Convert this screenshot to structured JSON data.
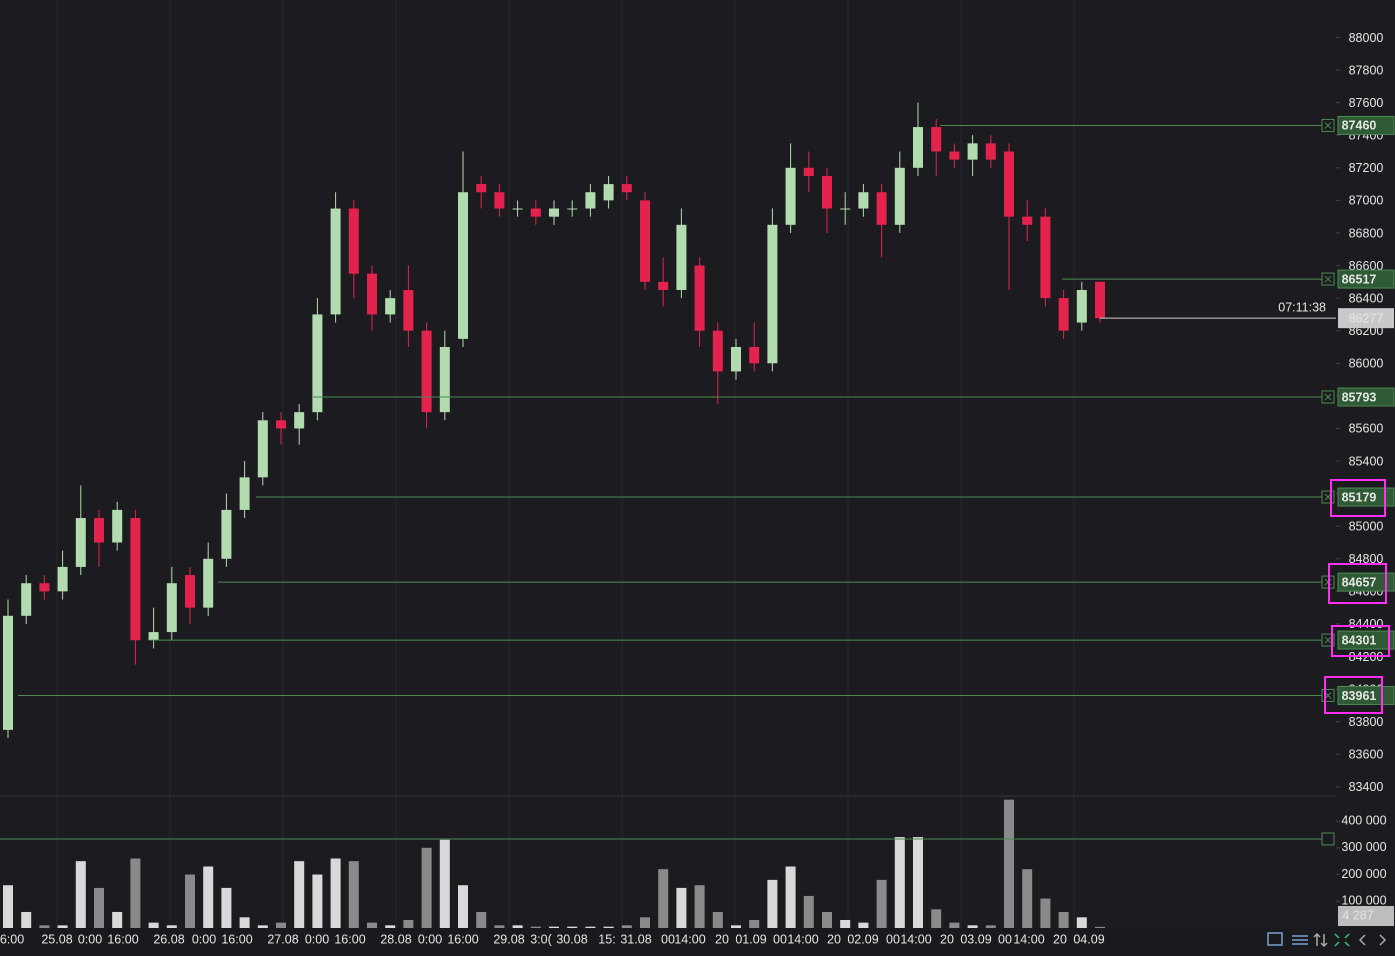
{
  "chart_data": {
    "type": "candlestick",
    "open": [
      83750,
      84450,
      84650,
      84600,
      84750,
      85050,
      84900,
      85050,
      84300,
      84350,
      84700,
      84500,
      84800,
      85100,
      85300,
      85650,
      85600,
      85700,
      86300,
      86950,
      86550,
      86300,
      86450,
      86200,
      85700,
      86150,
      87100,
      87050,
      86950,
      86950,
      86900,
      86950,
      86950,
      87000,
      87100,
      87000,
      86500,
      86450,
      86600,
      86200,
      85950,
      86100,
      86000,
      86850,
      87200,
      87150,
      86950,
      86950,
      87050,
      86850,
      87200,
      87450,
      87300,
      87250,
      87350,
      87300,
      86900,
      86900,
      86400,
      86250,
      86500
    ],
    "high": [
      84550,
      84700,
      84700,
      84850,
      85250,
      85100,
      85150,
      85100,
      84500,
      84750,
      84750,
      84900,
      85200,
      85400,
      85700,
      85700,
      85750,
      86400,
      87050,
      87000,
      86600,
      86450,
      86600,
      86250,
      86200,
      87300,
      87150,
      87100,
      87000,
      87000,
      87000,
      87000,
      87100,
      87150,
      87150,
      87050,
      86650,
      86950,
      86650,
      86250,
      86150,
      86250,
      86950,
      87350,
      87300,
      87200,
      87050,
      87100,
      87100,
      87300,
      87600,
      87500,
      87350,
      87400,
      87400,
      87350,
      87000,
      86950,
      86450,
      86500,
      86500
    ],
    "low": [
      83700,
      84400,
      84550,
      84550,
      84700,
      84750,
      84850,
      84150,
      84250,
      84300,
      84400,
      84450,
      84750,
      85050,
      85250,
      85500,
      85500,
      85650,
      86250,
      86400,
      86200,
      86250,
      86100,
      85600,
      85650,
      86100,
      86950,
      86900,
      86900,
      86850,
      86850,
      86900,
      86900,
      86950,
      87000,
      86450,
      86350,
      86400,
      86100,
      85750,
      85900,
      85950,
      85950,
      86800,
      87050,
      86800,
      86850,
      86900,
      86650,
      86800,
      87150,
      87150,
      87200,
      87150,
      87200,
      86450,
      86750,
      86350,
      86150,
      86200,
      86250
    ],
    "close": [
      84450,
      84650,
      84600,
      84750,
      85050,
      84900,
      85100,
      84300,
      84350,
      84650,
      84500,
      84800,
      85100,
      85300,
      85650,
      85600,
      85700,
      86300,
      86950,
      86550,
      86300,
      86400,
      86200,
      85700,
      86100,
      87050,
      87050,
      86950,
      86950,
      86900,
      86950,
      86950,
      87050,
      87100,
      87050,
      86500,
      86450,
      86850,
      86200,
      85950,
      86100,
      86000,
      86850,
      87200,
      87150,
      86950,
      86950,
      87050,
      86850,
      87200,
      87450,
      87300,
      87250,
      87350,
      87250,
      86900,
      86850,
      86400,
      86200,
      86450,
      86277
    ],
    "up_color": "#b3dbb0",
    "down_color": "#e3234d",
    "ylim": [
      83350,
      88230
    ],
    "yticks": [
      83400,
      83600,
      83800,
      84000,
      84200,
      84400,
      84600,
      84800,
      85000,
      85200,
      85400,
      85600,
      85800,
      86000,
      86200,
      86400,
      86600,
      86800,
      87000,
      87200,
      87400,
      87600,
      87800,
      88000
    ],
    "levels": [
      87460,
      86517,
      85793,
      85179,
      84657,
      84301,
      83961
    ],
    "level_color": "#4c8a52",
    "last_price": 86277,
    "countdown": "07:11:38",
    "volume": {
      "values": [
        160000,
        60000,
        10000,
        10000,
        250000,
        150000,
        60000,
        260000,
        20000,
        10000,
        200000,
        230000,
        150000,
        40000,
        10000,
        20000,
        250000,
        200000,
        260000,
        250000,
        20000,
        10000,
        30000,
        300000,
        330000,
        160000,
        60000,
        10000,
        10000,
        5000,
        5000,
        5000,
        5000,
        5000,
        10000,
        40000,
        220000,
        150000,
        160000,
        60000,
        10000,
        30000,
        180000,
        230000,
        120000,
        60000,
        30000,
        20000,
        180000,
        340000,
        340000,
        70000,
        20000,
        10000,
        10000,
        480000,
        220000,
        110000,
        60000,
        40000,
        4287
      ],
      "up_color": "#d9d9d9",
      "down_color": "#8a8a8a",
      "ylim": [
        0,
        490000
      ],
      "yticks": [
        {
          "value": 100000,
          "label": "100 000"
        },
        {
          "value": 200000,
          "label": "200 000"
        },
        {
          "value": 300000,
          "label": "300 000"
        },
        {
          "value": 400000,
          "label": "400 000"
        }
      ],
      "marker": {
        "value": 4287,
        "label": "4 287"
      },
      "level": 333000
    },
    "x_labels": [
      "6:00",
      "25.08",
      "0:00",
      "16:00",
      "26.08",
      "0:00",
      "16:00",
      "27.08",
      "0:00",
      "16:00",
      "28.08",
      "0:00",
      "16:00",
      "29.08",
      "3:0(",
      "30.08",
      "15:",
      "31.08",
      "00",
      "14:00",
      "20",
      "01.09",
      "00",
      "14:00",
      "20",
      "02.09",
      "00",
      "14:00",
      "20",
      "03.09",
      "00",
      "14:00",
      "20",
      "04.09"
    ]
  }
}
